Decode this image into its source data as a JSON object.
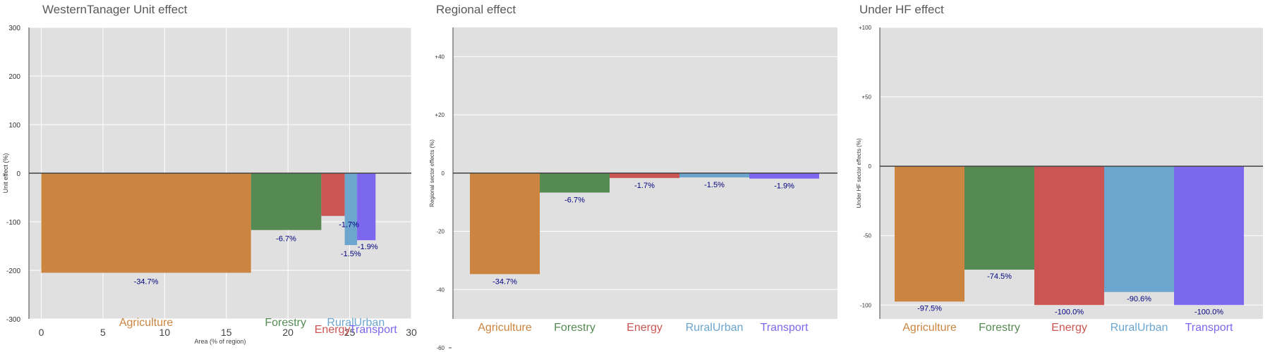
{
  "chart_data": [
    {
      "type": "bar",
      "title": "WesternTanager Unit effect",
      "xlabel": "Area (% of region)",
      "ylabel": "Unit effect (%)",
      "xlim": [
        -1,
        30
      ],
      "ylim": [
        -300,
        300
      ],
      "x_ticks": [
        0,
        5,
        10,
        15,
        20,
        25,
        30
      ],
      "y_ticks": [
        {
          "v": 300,
          "label": "300"
        },
        {
          "v": 200,
          "label": "200"
        },
        {
          "v": 100,
          "label": "100"
        },
        {
          "v": 0,
          "label": "0"
        },
        {
          "v": -100,
          "label": "-100"
        },
        {
          "v": -200,
          "label": "-200"
        },
        {
          "v": -300,
          "label": "-300"
        }
      ],
      "bars": [
        {
          "category": "Agriculture",
          "x_start": 0,
          "x_end": 17,
          "value": -205,
          "label": "-34.7%",
          "color": "#CC8540"
        },
        {
          "category": "Forestry",
          "x_start": 17,
          "x_end": 22.7,
          "value": -117,
          "label": "-6.7%",
          "color": "#568A53"
        },
        {
          "category": "Energy",
          "x_start": 22.7,
          "x_end": 24.6,
          "value": -88,
          "label": "-1.7%",
          "color": "#CB5553"
        },
        {
          "category": "RuralUrban",
          "x_start": 24.6,
          "x_end": 25.6,
          "value": -148,
          "label": "-1.5%",
          "color": "#6CA6CF"
        },
        {
          "category": "Transport",
          "x_start": 25.6,
          "x_end": 27.1,
          "value": -138,
          "label": "-1.9%",
          "color": "#7B68EE"
        }
      ],
      "category_labels": [
        {
          "text": "Agriculture",
          "color": "#CC8540"
        },
        {
          "text": "Forestry",
          "color": "#568A53"
        },
        {
          "text": "Energy",
          "color": "#CB5553"
        },
        {
          "text": "RuralUrban",
          "color": "#6CA6CF"
        },
        {
          "text": "Transport",
          "color": "#7B68EE"
        }
      ],
      "grid": true
    },
    {
      "type": "bar",
      "title": "Regional effect",
      "ylabel": "Regional sector effects (%)",
      "ylim": [
        -60,
        50
      ],
      "y_ticks": [
        {
          "v": 40,
          "label": "+40"
        },
        {
          "v": 20,
          "label": "+20"
        },
        {
          "v": 0,
          "label": "0"
        },
        {
          "v": -20,
          "label": "-20"
        },
        {
          "v": -40,
          "label": "-40"
        },
        {
          "v": -60,
          "label": "-60"
        }
      ],
      "categories": [
        "Agriculture",
        "Forestry",
        "Energy",
        "RuralUrban",
        "Transport"
      ],
      "values": [
        -34.7,
        -6.7,
        -1.7,
        -1.5,
        -1.9
      ],
      "labels": [
        "-34.7%",
        "-6.7%",
        "-1.7%",
        "-1.5%",
        "-1.9%"
      ],
      "colors": [
        "#CC8540",
        "#568A53",
        "#CB5553",
        "#6CA6CF",
        "#7B68EE"
      ],
      "grid": true
    },
    {
      "type": "bar",
      "title": "Under HF effect",
      "ylabel": "Under HF sector effects (%)",
      "ylim": [
        -110,
        100
      ],
      "y_ticks": [
        {
          "v": 100,
          "label": "+100"
        },
        {
          "v": 50,
          "label": "+50"
        },
        {
          "v": 0,
          "label": "0"
        },
        {
          "v": -50,
          "label": "-50"
        },
        {
          "v": -100,
          "label": "-100"
        }
      ],
      "categories": [
        "Agriculture",
        "Forestry",
        "Energy",
        "RuralUrban",
        "Transport"
      ],
      "values": [
        -97.5,
        -74.5,
        -100.0,
        -90.6,
        -100.0
      ],
      "labels": [
        "-97.5%",
        "-74.5%",
        "-100.0%",
        "-90.6%",
        "-100.0%"
      ],
      "colors": [
        "#CC8540",
        "#568A53",
        "#CB5553",
        "#6CA6CF",
        "#7B68EE"
      ],
      "grid": true
    }
  ]
}
